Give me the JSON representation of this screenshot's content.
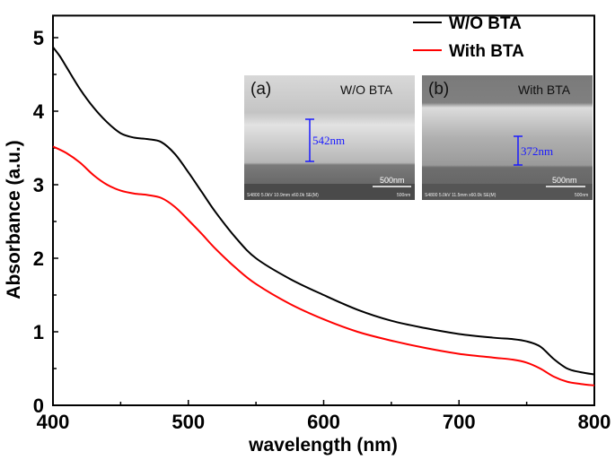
{
  "chart_data": {
    "type": "line",
    "title": "",
    "xlabel": "wavelength (nm)",
    "ylabel": "Absorbance (a.u.)",
    "xlim": [
      400,
      800
    ],
    "ylim": [
      0,
      5.3
    ],
    "xticks": [
      "400",
      "500",
      "600",
      "700",
      "800"
    ],
    "yticks": [
      "0",
      "1",
      "2",
      "3",
      "4",
      "5"
    ],
    "grid": false,
    "legend_position": "top-right",
    "series": [
      {
        "name": "W/O BTA",
        "color": "#000000",
        "x": [
          400,
          405,
          410,
          420,
          430,
          440,
          450,
          460,
          470,
          480,
          490,
          500,
          510,
          520,
          535,
          550,
          575,
          600,
          625,
          650,
          675,
          700,
          725,
          740,
          750,
          760,
          770,
          780,
          790,
          800
        ],
        "y": [
          4.87,
          4.75,
          4.6,
          4.3,
          4.05,
          3.85,
          3.7,
          3.64,
          3.62,
          3.58,
          3.42,
          3.17,
          2.9,
          2.63,
          2.28,
          2.0,
          1.72,
          1.5,
          1.3,
          1.15,
          1.05,
          0.97,
          0.92,
          0.9,
          0.87,
          0.8,
          0.63,
          0.5,
          0.45,
          0.42
        ]
      },
      {
        "name": "With BTA",
        "color": "#ff0000",
        "x": [
          400,
          410,
          420,
          430,
          440,
          450,
          460,
          470,
          480,
          490,
          500,
          510,
          520,
          535,
          550,
          575,
          600,
          625,
          650,
          675,
          700,
          725,
          740,
          750,
          760,
          770,
          780,
          790,
          800
        ],
        "y": [
          3.52,
          3.43,
          3.3,
          3.13,
          3.0,
          2.92,
          2.88,
          2.86,
          2.82,
          2.7,
          2.52,
          2.33,
          2.13,
          1.87,
          1.65,
          1.38,
          1.17,
          1.0,
          0.88,
          0.78,
          0.7,
          0.65,
          0.62,
          0.58,
          0.5,
          0.39,
          0.32,
          0.29,
          0.27
        ]
      }
    ]
  },
  "insets": [
    {
      "panel": "(a)",
      "title": "W/O BTA",
      "thickness": "542nm",
      "scale_bar": "500nm",
      "meta": "S4800 5.0kV 10.9mm x60.0k SE(M)",
      "meta_right": "500nm"
    },
    {
      "panel": "(b)",
      "title": "With BTA",
      "thickness": "372nm",
      "scale_bar": "500nm",
      "meta": "S4800 5.0kV 11.5mm x60.0k SE(M)",
      "meta_right": "500nm"
    }
  ]
}
